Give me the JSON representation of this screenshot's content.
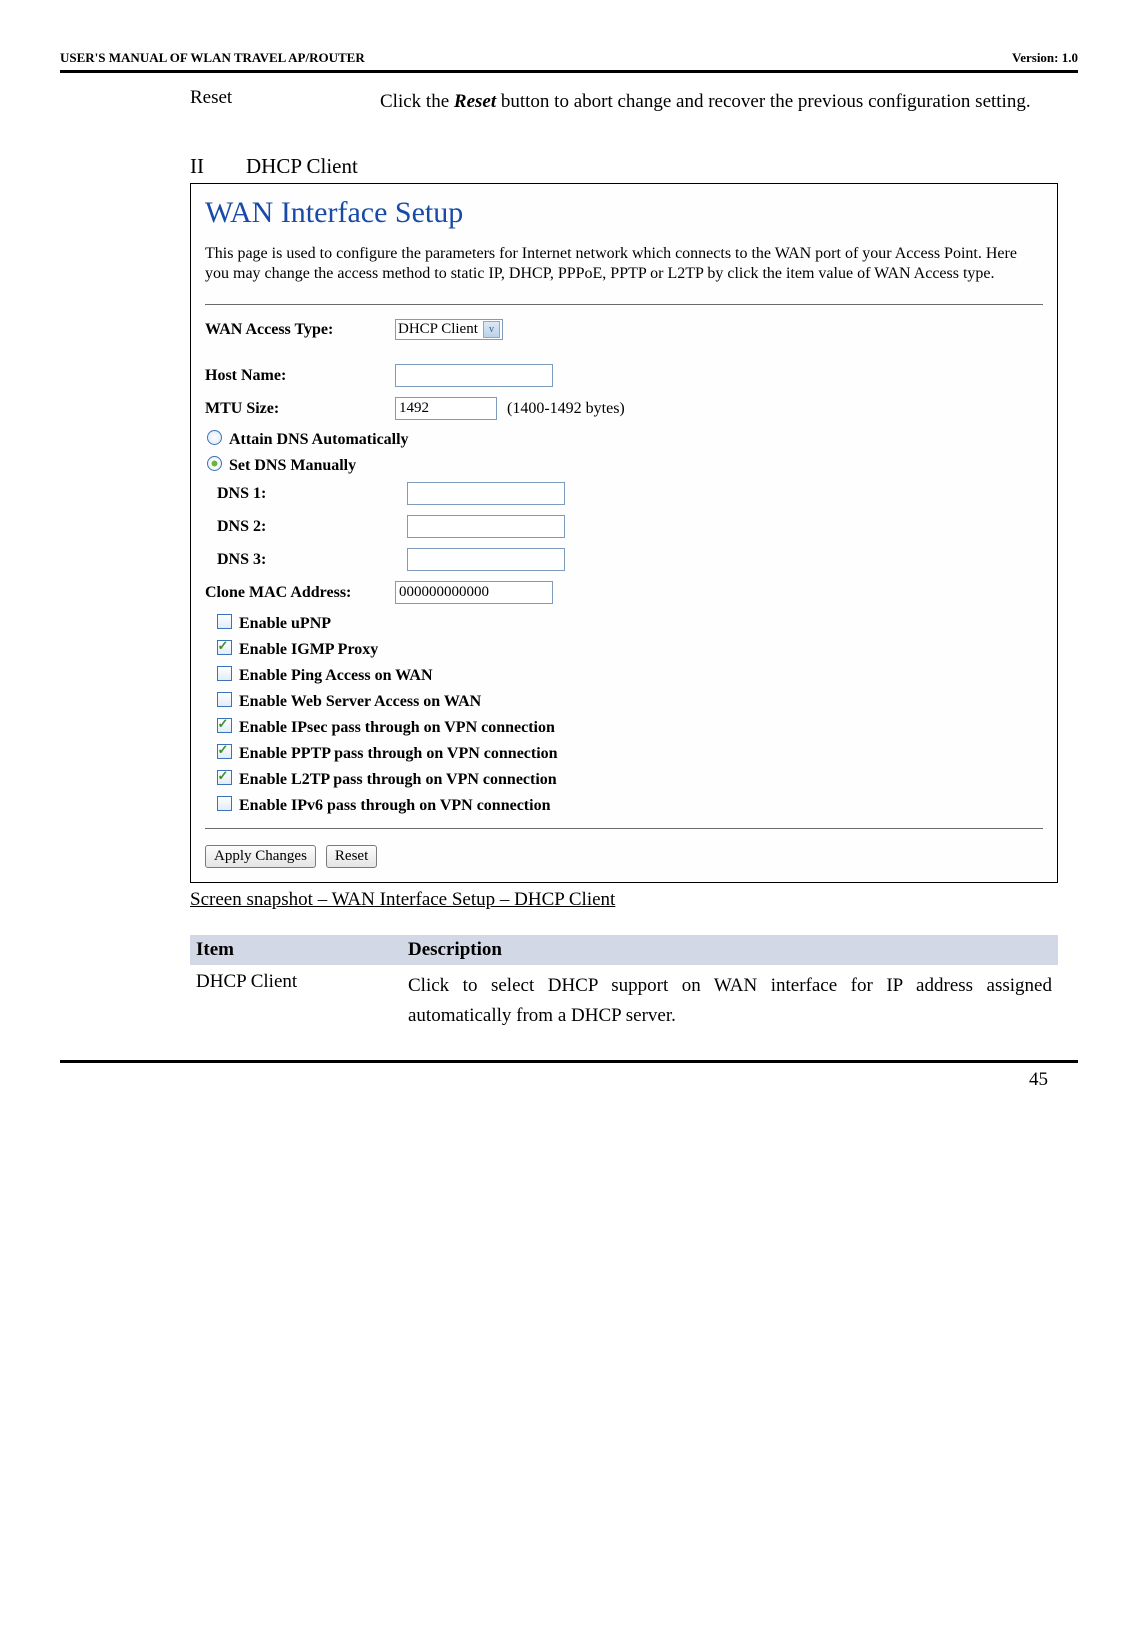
{
  "header": {
    "left": "USER'S MANUAL OF WLAN TRAVEL AP/ROUTER",
    "right": "Version: 1.0"
  },
  "reset": {
    "label": "Reset",
    "desc_pre": "Click the ",
    "desc_em": "Reset",
    "desc_post": " button to abort change and recover the previous configuration setting."
  },
  "section": {
    "roman": "II",
    "title": "DHCP Client"
  },
  "wan": {
    "title": "WAN Interface Setup",
    "desc": "This page is used to configure the parameters for Internet network which connects to the WAN port of your Access Point. Here you may change the access method to static IP, DHCP, PPPoE, PPTP or L2TP by click the item value of WAN Access type.",
    "access_label": "WAN Access Type:",
    "access_value": "DHCP Client",
    "host_label": "Host Name:",
    "host_value": "",
    "mtu_label": "MTU Size:",
    "mtu_value": "1492",
    "mtu_note": "(1400-1492 bytes)",
    "dns_auto": "Attain DNS Automatically",
    "dns_manual": "Set DNS Manually",
    "dns1_label": "DNS 1:",
    "dns1_value": "",
    "dns2_label": "DNS 2:",
    "dns2_value": "",
    "dns3_label": "DNS 3:",
    "dns3_value": "",
    "clone_label": "Clone MAC Address:",
    "clone_value": "000000000000",
    "checks": [
      {
        "label": "Enable uPNP",
        "checked": false
      },
      {
        "label": "Enable IGMP Proxy",
        "checked": true
      },
      {
        "label": "Enable Ping Access on WAN",
        "checked": false
      },
      {
        "label": "Enable Web Server Access on WAN",
        "checked": false
      },
      {
        "label": "Enable IPsec pass through on VPN connection",
        "checked": true
      },
      {
        "label": "Enable PPTP pass through on VPN connection",
        "checked": true
      },
      {
        "label": "Enable L2TP pass through on VPN connection",
        "checked": true
      },
      {
        "label": "Enable IPv6 pass through on VPN connection",
        "checked": false
      }
    ],
    "apply": "Apply Changes",
    "reset": "Reset"
  },
  "caption": "Screen snapshot – WAN Interface Setup – DHCP Client",
  "table": {
    "h1": "Item",
    "h2": "Description",
    "row1_item": "DHCP Client",
    "row1_desc": "Click to select DHCP support on WAN interface for IP address assigned automatically from a DHCP server."
  },
  "page_number": "45"
}
